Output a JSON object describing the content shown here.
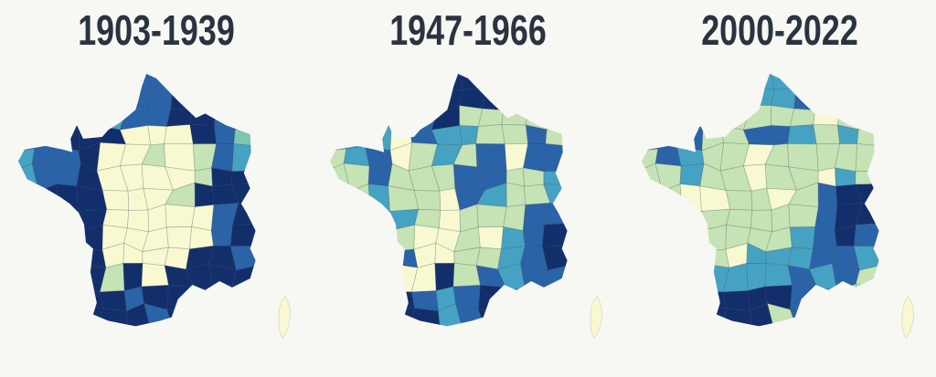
{
  "page": {
    "background_color": "#f7f7f4",
    "title_color": "#2a3340"
  },
  "palette": {
    "Y": "#f8f9d0",
    "G": "#c5e3b4",
    "S": "#7fc6b2",
    "T": "#46a2c2",
    "B": "#2b63a8",
    "D": "#122f6c"
  },
  "panels": [
    {
      "title": "1903-1939",
      "corsica_color": "Y",
      "grid": [
        "BBBBBBBBDDDD",
        "BBBBBBBDDDDD",
        "DDDDTBBDDBBB",
        "BBDDDYYYDBSS",
        "TBBDYYGYGBTT",
        "TBBDYYYYGDDD",
        "BDDDYYYGDDDD",
        "BBDDYYYYYBDD",
        "BBDDYYYYYBDD",
        "BBDDYYYYDDBB",
        "DDDDGDYDDDDD",
        "DDDDDBDDDDDD",
        "DDDDDDBDDDDD",
        "DDDDDDDDDDDD"
      ]
    },
    {
      "title": "1947-1966",
      "corsica_color": "Y",
      "grid": [
        "DDDDDDDDGGGG",
        "DDDDDDDDGGGG",
        "TTTBBDGGGGGG",
        "TTTYBTTGGBGG",
        "GTBYGTGBYBBB",
        "GGBGGGBBGGTB",
        "GGTGGYBTGGTT",
        "BBBTGYGGGBBB",
        "DDDGYYGYTBDD",
        "DDDBYYGGTBDB",
        "DDDYYDGBTBBB",
        "DDDDBTBDBBBB",
        "DDDDDTBDDDDD",
        "DDDDDDDDDDDD"
      ]
    },
    {
      "title": "2000-2022",
      "corsica_color": "Y",
      "grid": [
        "TTTTTTTTGGGG",
        "GGGGGTTBGGGG",
        "GGGGGGGGYGGG",
        "BBBGGBBTGTGG",
        "GBTGGYGGGGGG",
        "GGTGGYGGYTGG",
        "GGYYGGYGBDDD",
        "GGGGGGGGBDDD",
        "GGGGGGGTBDBB",
        "GGGGYTTTBBTT",
        "GGGTTTTBTBGG",
        "DDDDDDDBTGGG",
        "DDDDDDGBBBBB",
        "DDDDDDDDDDDD"
      ]
    }
  ]
}
